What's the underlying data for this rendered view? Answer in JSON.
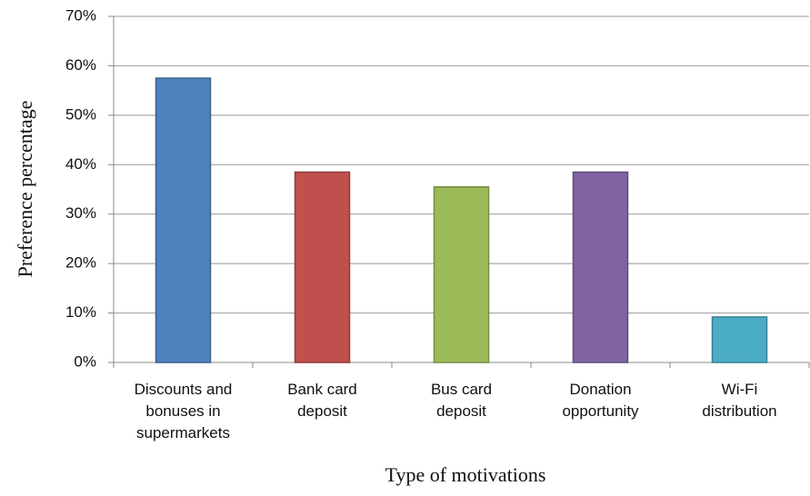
{
  "chart_data": {
    "type": "bar",
    "categories": [
      "Discounts and bonuses in supermarkets",
      "Bank card deposit",
      "Bus card deposit",
      "Donation opportunity",
      "Wi-Fi distribution"
    ],
    "values": [
      57.5,
      38.5,
      35.5,
      38.5,
      9.2
    ],
    "colors": [
      "#4f81bd",
      "#c0504d",
      "#9bbb59",
      "#8064a2",
      "#4bacc6"
    ],
    "ylim": [
      0,
      70
    ],
    "yticks": [
      {
        "value": 0,
        "label": "0%"
      },
      {
        "value": 10,
        "label": "10%"
      },
      {
        "value": 20,
        "label": "20%"
      },
      {
        "value": 30,
        "label": "30%"
      },
      {
        "value": 40,
        "label": "40%"
      },
      {
        "value": 50,
        "label": "50%"
      },
      {
        "value": 60,
        "label": "60%"
      },
      {
        "value": 70,
        "label": "70%"
      }
    ],
    "grid": true,
    "xlabel": "Type of motivations",
    "ylabel": "Preference percentage"
  }
}
